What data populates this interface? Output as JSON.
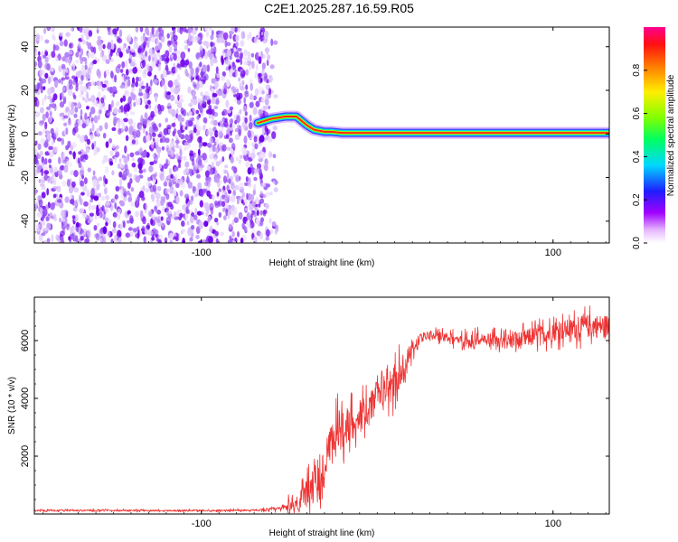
{
  "title": "C2E1.2025.287.16.59.R05",
  "chart_data": [
    {
      "type": "heatmap",
      "title": "C2E1.2025.287.16.59.R05",
      "xlabel": "Height of straight line (km)",
      "ylabel": "Frequency (Hz)",
      "xlim": [
        -195,
        132
      ],
      "ylim": [
        -50,
        49
      ],
      "xticks": [
        -100,
        100
      ],
      "yticks": [
        -40,
        -20,
        0,
        20,
        40
      ],
      "noise_region_end_km": -62,
      "ridge": {
        "description": "bright ridge of normalized amplitude near 0 Hz",
        "x": [
          -68,
          -60,
          -52,
          -46,
          -40,
          -36,
          -30,
          -26,
          -20,
          -10,
          0,
          4,
          10,
          30,
          60,
          100,
          132
        ],
        "freq": [
          5,
          7,
          8,
          8,
          4,
          2,
          1,
          1,
          0.5,
          0.5,
          0.5,
          0.5,
          0.5,
          0.5,
          0.5,
          0.5,
          0.5
        ]
      },
      "colorbar": {
        "label": "Normalized spectral amplitude",
        "ticks": [
          "0.0",
          "0.2",
          "0.4",
          "0.6",
          "0.8"
        ],
        "range": [
          0,
          1
        ]
      }
    },
    {
      "type": "line",
      "xlabel": "Height of straight line (km)",
      "ylabel": "SNR (10 * v/v)",
      "xlim": [
        -195,
        132
      ],
      "ylim": [
        0,
        7500
      ],
      "xticks": [
        -100,
        100
      ],
      "yticks": [
        2000,
        4000,
        6000
      ],
      "series": [
        {
          "name": "SNR",
          "color": "#ee3333",
          "x": [
            -195,
            -150,
            -100,
            -70,
            -55,
            -45,
            -40,
            -35,
            -30,
            -25,
            -20,
            -15,
            -10,
            -5,
            0,
            5,
            10,
            15,
            20,
            25,
            30,
            40,
            50,
            60,
            70,
            80,
            90,
            100,
            110,
            120,
            132
          ],
          "y": [
            120,
            120,
            120,
            130,
            180,
            400,
            700,
            1100,
            1500,
            2600,
            3000,
            3100,
            3400,
            3600,
            4200,
            4300,
            4500,
            4900,
            5700,
            6100,
            6200,
            6100,
            6000,
            6050,
            5950,
            6000,
            6150,
            6300,
            6400,
            6500,
            6500
          ],
          "noise_amplitude": [
            60,
            60,
            60,
            60,
            150,
            700,
            900,
            1400,
            1700,
            1500,
            1400,
            1200,
            1100,
            900,
            900,
            800,
            1600,
            900,
            500,
            400,
            300,
            300,
            450,
            450,
            500,
            600,
            650,
            650,
            700,
            800,
            800
          ]
        }
      ]
    }
  ],
  "colors": {
    "plot_border": "#000000",
    "noise_dots": "#6b00e8",
    "line": "#ee3333"
  }
}
